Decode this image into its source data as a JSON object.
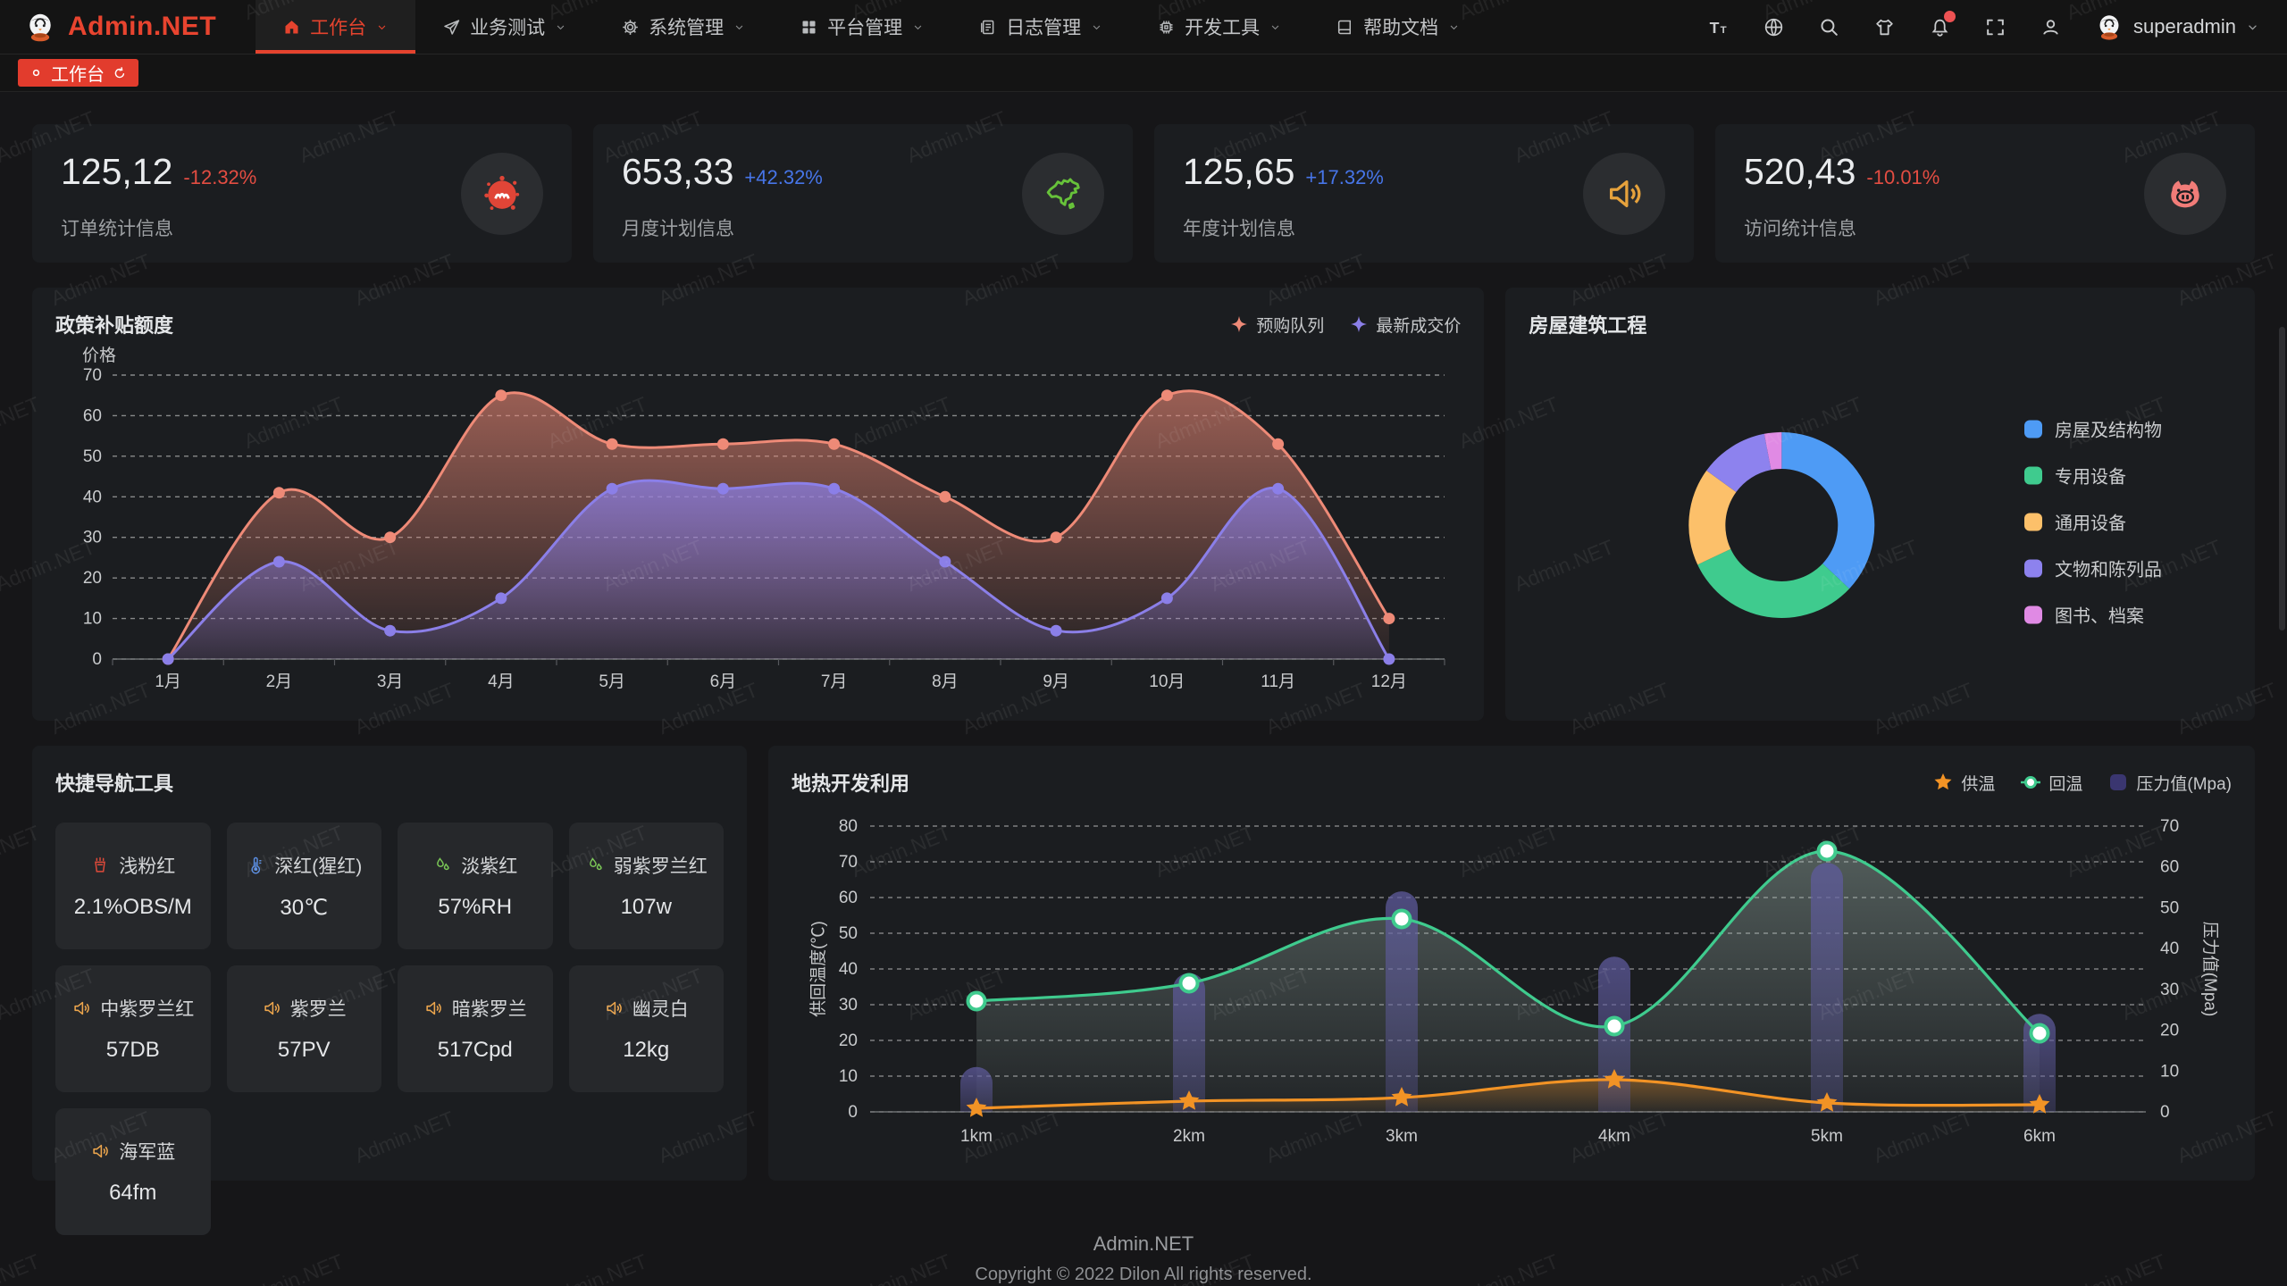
{
  "app": {
    "logo_text": "Admin.NET",
    "user_name": "superadmin"
  },
  "nav": {
    "items": [
      {
        "label": "工作台",
        "icon": "home-icon",
        "active": true
      },
      {
        "label": "业务测试",
        "icon": "send-icon",
        "active": false
      },
      {
        "label": "系统管理",
        "icon": "gear-icon",
        "active": false
      },
      {
        "label": "平台管理",
        "icon": "grid-icon",
        "active": false
      },
      {
        "label": "日志管理",
        "icon": "log-icon",
        "active": false
      },
      {
        "label": "开发工具",
        "icon": "chip-icon",
        "active": false
      },
      {
        "label": "帮助文档",
        "icon": "book-icon",
        "active": false
      }
    ]
  },
  "header_icons": [
    {
      "icon": "font-size-icon",
      "badge": false
    },
    {
      "icon": "locale-icon",
      "badge": false
    },
    {
      "icon": "search-icon",
      "badge": false
    },
    {
      "icon": "theme-icon",
      "badge": false
    },
    {
      "icon": "bell-icon",
      "badge": true
    },
    {
      "icon": "fullscreen-icon",
      "badge": false
    },
    {
      "icon": "profile-icon",
      "badge": false
    }
  ],
  "tabbar": {
    "tabs": [
      {
        "label": "工作台",
        "active": true
      }
    ]
  },
  "stats": [
    {
      "value": "125,12",
      "delta": "-12.32%",
      "trend": "down",
      "label": "订单统计信息",
      "icon": "splat-icon",
      "icon_color": "#e04537"
    },
    {
      "value": "653,33",
      "delta": "+42.32%",
      "trend": "up",
      "label": "月度计划信息",
      "icon": "china-map-icon",
      "icon_color": "#67c23a"
    },
    {
      "value": "125,65",
      "delta": "+17.32%",
      "trend": "up",
      "label": "年度计划信息",
      "icon": "speaker-icon",
      "icon_color": "#e6a23c"
    },
    {
      "value": "520,43",
      "delta": "-10.01%",
      "trend": "down",
      "label": "访问统计信息",
      "icon": "pig-icon",
      "icon_color": "#f17c78"
    }
  ],
  "tools": {
    "title": "快捷导航工具",
    "items": [
      {
        "label": "浅粉红",
        "value": "2.1%OBS/M",
        "icon": "factory-icon",
        "icon_color": "#e04a3a"
      },
      {
        "label": "深红(猩红)",
        "value": "30℃",
        "icon": "thermometer-icon",
        "icon_color": "#5a8de0"
      },
      {
        "label": "淡紫红",
        "value": "57%RH",
        "icon": "droplets-icon",
        "icon_color": "#7ac756"
      },
      {
        "label": "弱紫罗兰红",
        "value": "107w",
        "icon": "droplets-icon",
        "icon_color": "#7ac756"
      },
      {
        "label": "中紫罗兰红",
        "value": "57DB",
        "icon": "speaker-icon",
        "icon_color": "#eba54d"
      },
      {
        "label": "紫罗兰",
        "value": "57PV",
        "icon": "speaker-icon",
        "icon_color": "#eba54d"
      },
      {
        "label": "暗紫罗兰",
        "value": "517Cpd",
        "icon": "speaker-icon",
        "icon_color": "#eba54d"
      },
      {
        "label": "幽灵白",
        "value": "12kg",
        "icon": "speaker-icon",
        "icon_color": "#eba54d"
      },
      {
        "label": "海军蓝",
        "value": "64fm",
        "icon": "speaker-icon",
        "icon_color": "#eba54d"
      }
    ]
  },
  "chart_data": [
    {
      "type": "area",
      "title": "政策补贴额度",
      "ylabel": "价格",
      "ylim": [
        0,
        70
      ],
      "y_interval": 10,
      "grid": "dashed",
      "legend_position": "top-right",
      "categories": [
        "1月",
        "2月",
        "3月",
        "4月",
        "5月",
        "6月",
        "7月",
        "8月",
        "9月",
        "10月",
        "11月",
        "12月"
      ],
      "series": [
        {
          "name": "预购队列",
          "color": "#ee8a77",
          "values": [
            0,
            41,
            30,
            65,
            53,
            53,
            53,
            40,
            30,
            65,
            53,
            10
          ]
        },
        {
          "name": "最新成交价",
          "color": "#8b7fe8",
          "values": [
            0,
            24,
            7,
            15,
            42,
            42,
            42,
            24,
            7,
            15,
            42,
            0
          ]
        }
      ]
    },
    {
      "type": "pie",
      "title": "房屋建筑工程",
      "legend_position": "right",
      "slices": [
        {
          "label": "房屋及结构物",
          "value": 37,
          "color": "#4e9bf5"
        },
        {
          "label": "专用设备",
          "value": 31,
          "color": "#3fcb8e"
        },
        {
          "label": "通用设备",
          "value": 17,
          "color": "#fcc06a"
        },
        {
          "label": "文物和陈列品",
          "value": 12,
          "color": "#8d82ee"
        },
        {
          "label": "图书、档案",
          "value": 3,
          "color": "#e08ae4"
        }
      ]
    },
    {
      "type": "mixed",
      "title": "地热开发利用",
      "categories": [
        "1km",
        "2km",
        "3km",
        "4km",
        "5km",
        "6km"
      ],
      "axes": {
        "left": {
          "label": "供回温度(℃)",
          "max": 80,
          "interval": 10
        },
        "right": {
          "label": "压力值(Mpa)",
          "max": 70,
          "interval": 10
        }
      },
      "grid": "dashed",
      "legend_position": "top-right",
      "series": [
        {
          "name": "供温",
          "chart": "line",
          "marker": "star",
          "axis": "left",
          "color": "#f29325",
          "values": [
            1,
            3,
            4,
            9,
            2.5,
            2
          ]
        },
        {
          "name": "回温",
          "chart": "line",
          "marker": "circle",
          "axis": "left",
          "color": "#3fcb8e",
          "values": [
            31,
            36,
            54,
            24,
            73,
            22
          ]
        },
        {
          "name": "压力值(Mpa)",
          "chart": "bar",
          "marker": "rect",
          "axis": "right",
          "color": "#5f5b9e",
          "values": [
            11,
            34,
            54,
            38,
            61,
            24
          ]
        }
      ]
    }
  ],
  "footer": {
    "brand": "Admin.NET",
    "copyright": "Copyright © 2022 Dilon All rights reserved."
  },
  "watermark": "Admin.NET",
  "colors": {
    "accent": "#e5432e",
    "delta_up": "#4775e8",
    "delta_down": "#e34d42",
    "tag_red": "#e23c2d"
  }
}
